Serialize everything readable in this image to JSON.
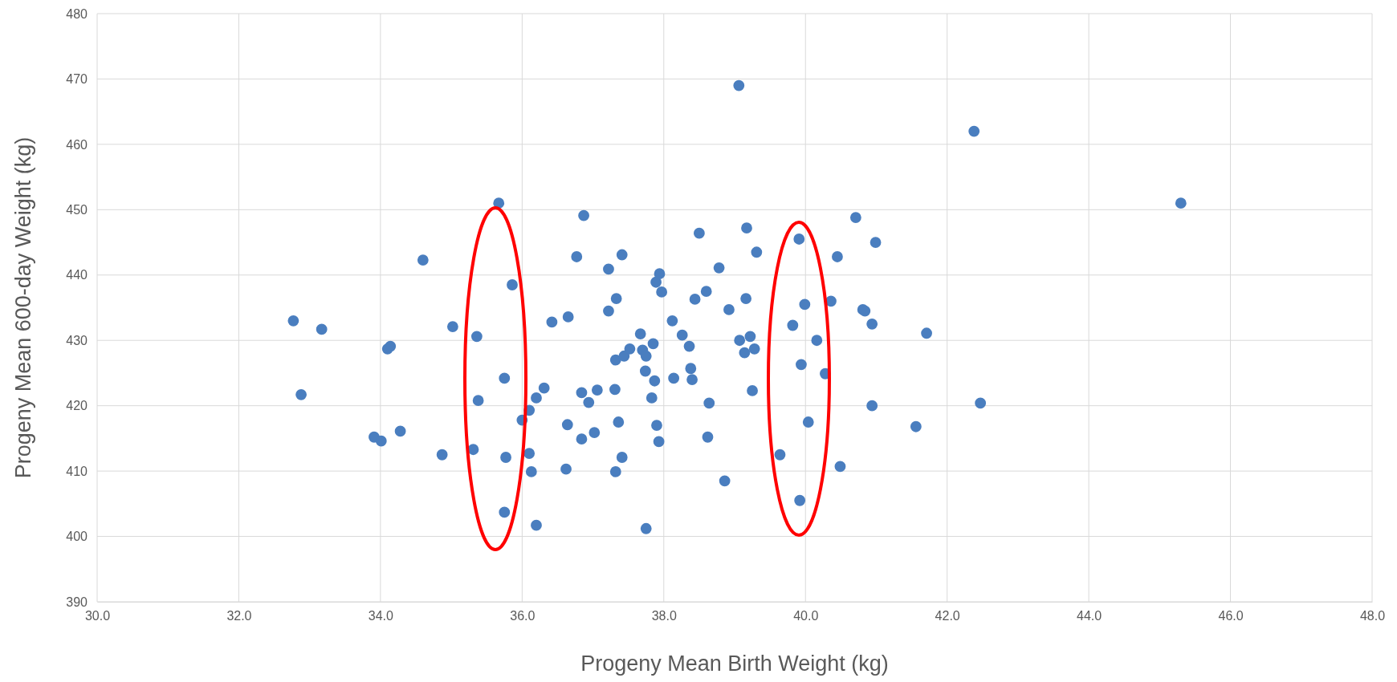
{
  "chart_data": {
    "type": "scatter",
    "xlabel": "Progeny Mean Birth Weight (kg)",
    "ylabel": "Progeny Mean 600-day Weight (kg)",
    "xlim": [
      30,
      48
    ],
    "xticks": [
      {
        "value": 30,
        "label": "30.0"
      },
      {
        "value": 32,
        "label": "32.0"
      },
      {
        "value": 34,
        "label": "34.0"
      },
      {
        "value": 36,
        "label": "36.0"
      },
      {
        "value": 38,
        "label": "38.0"
      },
      {
        "value": 40,
        "label": "40.0"
      },
      {
        "value": 42,
        "label": "42.0"
      },
      {
        "value": 44,
        "label": "44.0"
      },
      {
        "value": 46,
        "label": "46.0"
      },
      {
        "value": 48,
        "label": "48.0"
      }
    ],
    "ylim": [
      390,
      480
    ],
    "yticks": [
      390,
      400,
      410,
      420,
      430,
      440,
      450,
      460,
      470,
      480
    ],
    "grid": true,
    "marker": "circle",
    "series": [
      {
        "color": "#4a7ebf",
        "x": [
          32.77,
          32.88,
          33.17,
          33.91,
          34.01,
          34.1,
          34.14,
          34.28,
          34.6,
          34.87,
          35.02,
          35.31,
          35.36,
          35.38,
          35.67,
          35.75,
          35.77,
          35.75,
          35.86,
          36.0,
          36.1,
          36.1,
          36.13,
          36.2,
          36.2,
          36.31,
          36.42,
          36.62,
          36.64,
          36.65,
          36.77,
          36.84,
          36.84,
          36.87,
          36.94,
          37.02,
          37.06,
          37.22,
          37.22,
          37.31,
          37.32,
          37.32,
          37.33,
          37.36,
          37.41,
          37.41,
          37.44,
          37.52,
          37.67,
          37.7,
          37.75,
          37.74,
          37.75,
          37.83,
          37.85,
          37.87,
          37.89,
          37.9,
          37.93,
          37.94,
          37.97,
          38.12,
          38.14,
          38.26,
          38.36,
          38.38,
          38.4,
          38.44,
          38.5,
          38.6,
          38.62,
          38.64,
          38.78,
          38.86,
          38.92,
          39.06,
          39.07,
          39.14,
          39.16,
          39.17,
          39.22,
          39.25,
          39.28,
          39.31,
          39.64,
          39.82,
          39.91,
          39.94,
          39.92,
          39.99,
          40.04,
          40.16,
          40.28,
          40.36,
          40.45,
          40.49,
          40.71,
          40.81,
          40.84,
          40.94,
          40.94,
          40.99,
          41.56,
          41.71,
          42.38,
          42.47,
          45.3
        ],
        "values": [
          433.0,
          421.7,
          431.7,
          415.2,
          414.6,
          428.7,
          429.1,
          416.1,
          442.3,
          412.5,
          432.1,
          413.3,
          430.6,
          420.8,
          451.0,
          424.2,
          412.1,
          403.7,
          438.5,
          417.8,
          419.3,
          412.7,
          409.9,
          421.2,
          401.7,
          422.7,
          432.8,
          410.3,
          417.1,
          433.6,
          442.8,
          422.0,
          414.9,
          449.1,
          420.5,
          415.9,
          422.4,
          440.9,
          434.5,
          422.5,
          409.9,
          427.0,
          436.4,
          417.5,
          412.1,
          443.1,
          427.6,
          428.7,
          431.0,
          428.5,
          427.6,
          425.3,
          401.2,
          421.2,
          429.5,
          423.8,
          438.9,
          417.0,
          414.5,
          440.2,
          437.4,
          433.0,
          424.2,
          430.8,
          429.1,
          425.7,
          424.0,
          436.3,
          446.4,
          437.5,
          415.2,
          420.4,
          441.1,
          408.5,
          434.7,
          469.0,
          430.0,
          428.1,
          436.4,
          447.2,
          430.6,
          422.3,
          428.7,
          443.5,
          412.5,
          432.3,
          445.5,
          426.3,
          405.5,
          435.5,
          417.5,
          430.0,
          424.9,
          436.0,
          442.8,
          410.7,
          448.8,
          434.7,
          434.5,
          420.0,
          432.5,
          445.0,
          416.8,
          431.1,
          462.0,
          420.4,
          451.0
        ]
      }
    ]
  }
}
